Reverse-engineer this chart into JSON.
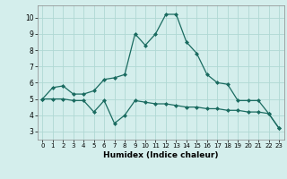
{
  "xlabel": "Humidex (Indice chaleur)",
  "ylabel": "",
  "background_color": "#d4eeec",
  "grid_color": "#b0d8d4",
  "line_color": "#1a6b60",
  "xlim": [
    -0.5,
    23.5
  ],
  "ylim": [
    2.5,
    10.75
  ],
  "yticks": [
    3,
    4,
    5,
    6,
    7,
    8,
    9,
    10
  ],
  "xticks": [
    0,
    1,
    2,
    3,
    4,
    5,
    6,
    7,
    8,
    9,
    10,
    11,
    12,
    13,
    14,
    15,
    16,
    17,
    18,
    19,
    20,
    21,
    22,
    23
  ],
  "curve1_x": [
    0,
    1,
    2,
    3,
    4,
    5,
    6,
    7,
    8,
    9,
    10,
    11,
    12,
    13,
    14,
    15,
    16,
    17,
    18,
    19,
    20,
    21,
    22,
    23
  ],
  "curve1_y": [
    5.0,
    5.7,
    5.8,
    5.3,
    5.3,
    5.5,
    6.2,
    6.3,
    6.5,
    9.0,
    8.3,
    9.0,
    10.2,
    10.2,
    8.5,
    7.8,
    6.5,
    6.0,
    5.9,
    4.9,
    4.9,
    4.9,
    4.1,
    3.2
  ],
  "curve2_x": [
    0,
    1,
    2,
    3,
    4,
    5,
    6,
    7,
    8,
    9,
    10,
    11,
    12,
    13,
    14,
    15,
    16,
    17,
    18,
    19,
    20,
    21,
    22,
    23
  ],
  "curve2_y": [
    5.0,
    5.0,
    5.0,
    4.9,
    4.9,
    4.2,
    4.9,
    3.5,
    4.0,
    4.9,
    4.8,
    4.7,
    4.7,
    4.6,
    4.5,
    4.5,
    4.4,
    4.4,
    4.3,
    4.3,
    4.2,
    4.2,
    4.1,
    3.2
  ]
}
